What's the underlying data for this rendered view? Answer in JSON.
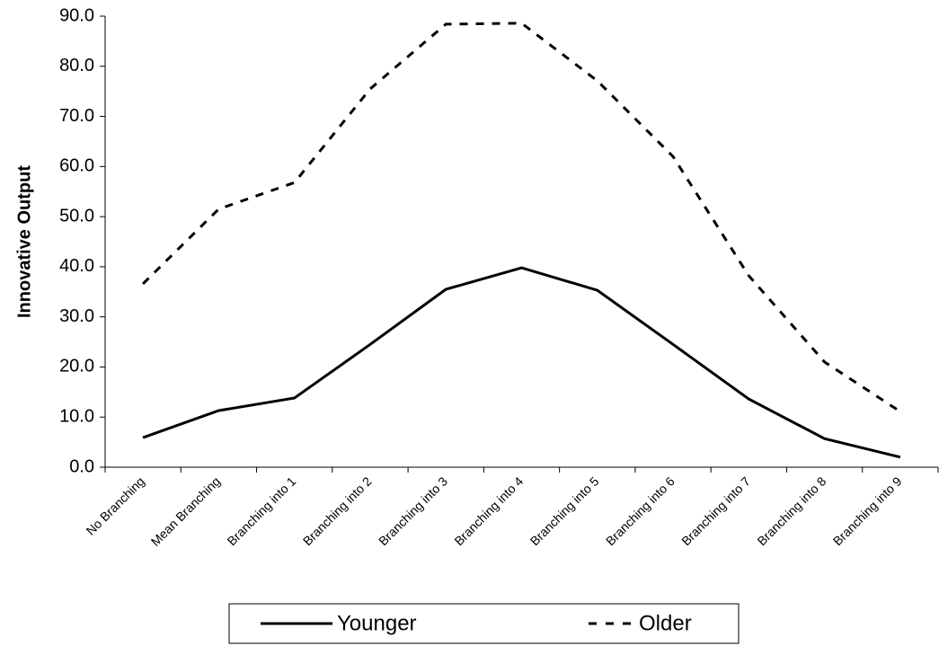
{
  "chart_data": {
    "type": "line",
    "y_label": "Innovative Output",
    "categories": [
      "No Branching",
      "Mean Branching",
      "Branching into 1",
      "Branching into 2",
      "Branching into 3",
      "Branching into 4",
      "Branching into 5",
      "Branching into 6",
      "Branching into 7",
      "Branching into 8",
      "Branching into 9"
    ],
    "series": [
      {
        "name": "Younger",
        "color": "#000000",
        "dash": "solid",
        "values": [
          5.9,
          11.3,
          13.8,
          24.5,
          35.5,
          39.8,
          35.3,
          24.5,
          13.6,
          5.7,
          2.0
        ]
      },
      {
        "name": "Older",
        "color": "#000000",
        "dash": "dashed",
        "values": [
          36.6,
          51.5,
          56.8,
          75.5,
          88.4,
          88.6,
          77.1,
          62.0,
          38.2,
          21.0,
          11.1
        ]
      }
    ],
    "ylim": [
      0,
      90
    ],
    "yticks": [
      {
        "value": 0,
        "label": "0.0"
      },
      {
        "value": 10,
        "label": "10.0"
      },
      {
        "value": 20,
        "label": "20.0"
      },
      {
        "value": 30,
        "label": "30.0"
      },
      {
        "value": 40,
        "label": "40.0"
      },
      {
        "value": 50,
        "label": "50.0"
      },
      {
        "value": 60,
        "label": "60.0"
      },
      {
        "value": 70,
        "label": "70.0"
      },
      {
        "value": 80,
        "label": "80.0"
      },
      {
        "value": 90,
        "label": "90.0"
      }
    ],
    "grid": false
  }
}
